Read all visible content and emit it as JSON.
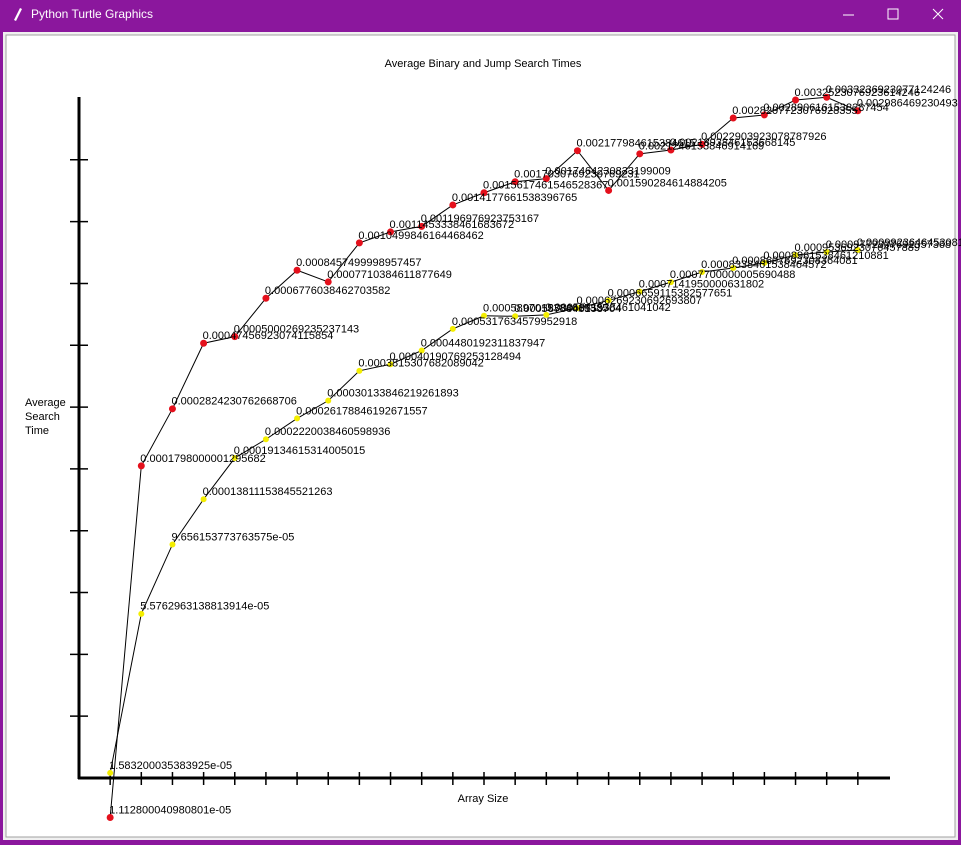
{
  "window": {
    "title": "Python Turtle Graphics"
  },
  "chart_data": {
    "type": "line",
    "title": "Average Binary and Jump Search Times",
    "x_label": "Array Size",
    "y_label": "Average\nSearch\nTime",
    "yscale": "log",
    "ylim": [
      1.521e-05,
      0.003305
    ],
    "yticks": [
      2.481e-05,
      4.047e-05,
      6.601e-05,
      0.00010766,
      0.00017558,
      0.0002864,
      0.0004671,
      0.0007618,
      0.0012425,
      0.0020265
    ],
    "categories": [
      null,
      null,
      null,
      null,
      null,
      null,
      null,
      null,
      null,
      null,
      null,
      null,
      null,
      null,
      null,
      null,
      null,
      null,
      null,
      null,
      null,
      null,
      null,
      null,
      null
    ],
    "series": [
      {
        "color": "#e4101c",
        "values": [
          1.112800040980801e-05,
          0.0001798000001295682,
          0.0002824230762668706,
          0.00047456923074115854,
          0.0005000269235237143,
          0.0006776038462703582,
          0.0008457499998957457,
          0.0007710384611877649,
          0.0010499846164468462,
          0.0011453338461683673,
          0.001196976923753167,
          0.0014177661538396764,
          0.0015617461546528367,
          0.001703076923076923,
          0.0017464230833199009,
          0.002177984615384615,
          0.001590284614884205,
          0.002124615384691417,
          0.0021893846153668143,
          0.002290392307878793,
          0.0028207723076928357,
          0.0028906161538287452,
          0.0032523076923614246,
          0.0033236923077124246,
          0.002986469230493
        ],
        "value_labels": [
          "1.112800040980801e-05",
          "0.0001798000001295682",
          "0.0002824230762668706",
          "0.00047456923074115854",
          "0.0005000269235237143",
          "0.0006776038462703582",
          "0.0008457499998957457",
          "0.0007710384611877649",
          "0.0010499846164468462",
          "0.0011453338461683672",
          "0.001196976923753167",
          "0.0014177661538396765",
          "0.0015617461546528367",
          "0.0017030769230769231",
          "0.0017464230833199009",
          "0.002177984615384615",
          "0.001590284614884205",
          "0.0021246153846914169",
          "0.0021893846153668145",
          "0.0022903923078787926",
          "0.0028207723076928355",
          "0.0028906161538287454",
          "0.0032523076923614246",
          "0.0033236923077124246",
          "0.002986469230493"
        ]
      },
      {
        "color": "#f4ee00",
        "values": [
          1.583200035383925e-05,
          5.5762963138813914e-05,
          9.656153773763575e-05,
          0.00013811153845521263,
          0.00019134615314005015,
          0.0002220038460598936,
          0.00026178846192671557,
          0.00030133846219261893,
          0.0003815307682089042,
          0.00040190769253128494,
          0.0004480192311837947,
          0.0005317634579952918,
          0.0005897015384615385,
          0.0005873846153704,
          0.0005941538461041042,
          0.0006269230692693807,
          0.0006659115382577651,
          0.0007141950000631802,
          0.0007700000005690488,
          0.0008338461538464572,
          0.0008607692308364081,
          0.0008961538461210881,
          0.0009536923076457889,
          0.000977230769235737,
          0.0009923646453081
        ],
        "value_labels": [
          "1.583200035383925e-05",
          "5.5762963138813914e-05",
          "9.656153773763575e-05",
          "0.00013811153845521263",
          "0.00019134615314005015",
          "0.0002220038460598936",
          "0.00026178846192671557",
          "0.00030133846219261893",
          "0.0003815307682089042",
          "0.00040190769253128494",
          "0.0004480192311837947",
          "0.0005317634579952918",
          "0.0005897015384615385",
          "0.0005873846153704",
          "0.0005941538461041042",
          "0.0006269230692693807",
          "0.0006659115382577651",
          "0.0007141950000631802",
          "0.0007700000005690488",
          "0.0008338461538464572",
          "0.0008607692308364081",
          "0.0008961538461210881",
          "0.0009536923076457889",
          "0.0009772307692357368",
          "0.0009923646453081"
        ]
      }
    ]
  }
}
